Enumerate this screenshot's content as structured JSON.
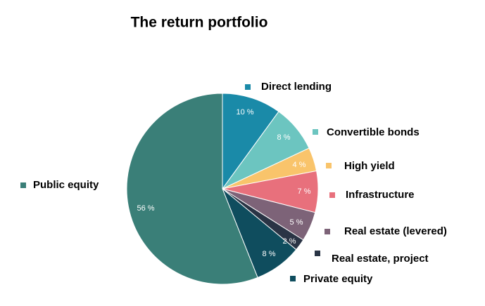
{
  "chart_data": {
    "type": "pie",
    "title": "The return portfolio",
    "categories": [
      "Direct lending",
      "Convertible bonds",
      "High yield",
      "Infrastructure",
      "Real estate (levered)",
      "Real estate, project",
      "Private equity",
      "Public equity"
    ],
    "values": [
      10,
      8,
      4,
      7,
      5,
      2,
      8,
      56
    ],
    "value_labels": [
      "10 %",
      "8 %",
      "4 %",
      "7 %",
      "5 %",
      "2 %",
      "8 %",
      "56 %"
    ],
    "colors": [
      "#1a8aa8",
      "#6cc5c0",
      "#f9c46b",
      "#e8707c",
      "#7d6378",
      "#2a3445",
      "#0f4d5e",
      "#3a7f78"
    ]
  }
}
